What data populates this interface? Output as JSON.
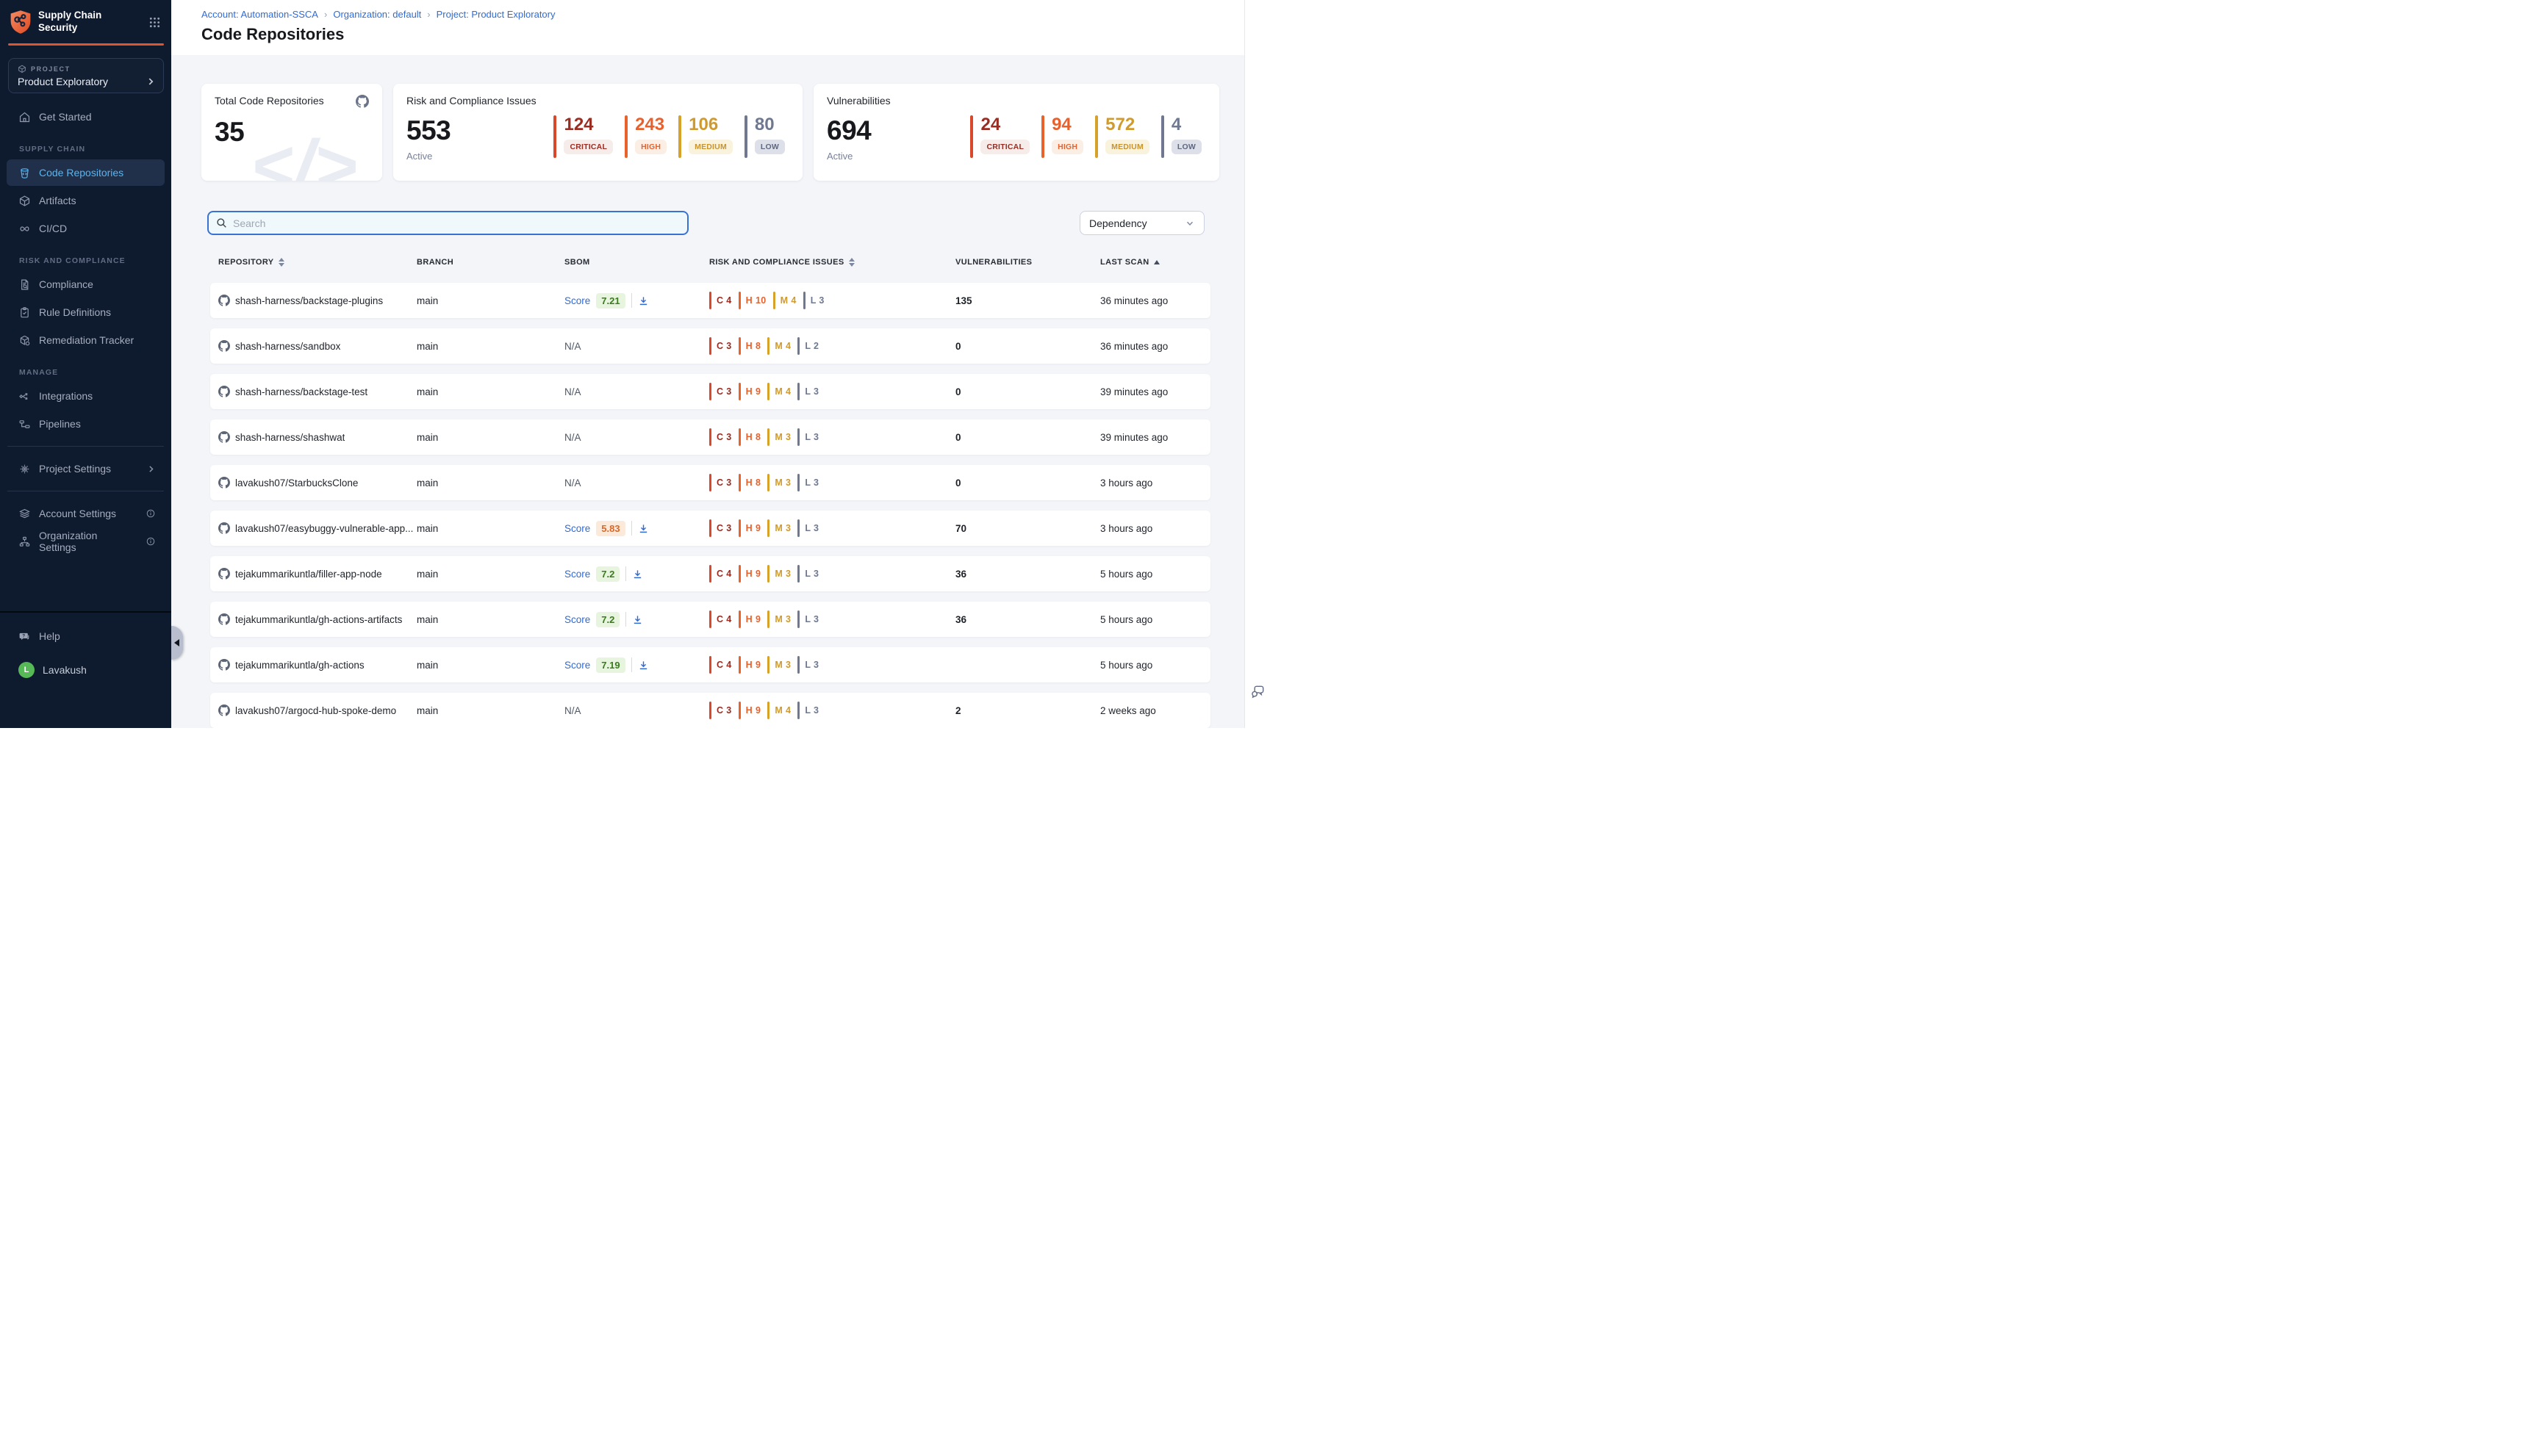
{
  "brand": {
    "name_line1": "Supply Chain",
    "name_line2": "Security",
    "accent_color": "#DE5530"
  },
  "breadcrumb": {
    "items": [
      "Account: Automation-SSCA",
      "Organization: default",
      "Project: Product Exploratory"
    ],
    "separator": "›"
  },
  "page": {
    "title": "Code Repositories"
  },
  "project_selector": {
    "label": "PROJECT",
    "name": "Product Exploratory"
  },
  "sidebar": {
    "get_started": "Get Started",
    "sections": [
      {
        "label": "SUPPLY CHAIN",
        "items": [
          {
            "label": "Code Repositories",
            "active": true
          },
          {
            "label": "Artifacts"
          },
          {
            "label": "CI/CD"
          }
        ]
      },
      {
        "label": "RISK AND COMPLIANCE",
        "items": [
          {
            "label": "Compliance"
          },
          {
            "label": "Rule Definitions"
          },
          {
            "label": "Remediation Tracker"
          }
        ]
      },
      {
        "label": "MANAGE",
        "items": [
          {
            "label": "Integrations"
          },
          {
            "label": "Pipelines"
          }
        ]
      }
    ],
    "project_settings": "Project Settings",
    "account_settings": "Account Settings",
    "organization_settings": "Organization Settings",
    "help": "Help",
    "user": {
      "initial": "L",
      "name": "Lavakush",
      "avatar_color": "#57B857"
    }
  },
  "cards": {
    "repos": {
      "title": "Total Code Repositories",
      "value": "35"
    },
    "risk": {
      "title": "Risk and Compliance Issues",
      "value": "553",
      "caption": "Active",
      "severities": [
        {
          "key": "critical",
          "label": "CRITICAL",
          "value": "124"
        },
        {
          "key": "high",
          "label": "HIGH",
          "value": "243"
        },
        {
          "key": "medium",
          "label": "MEDIUM",
          "value": "106"
        },
        {
          "key": "low",
          "label": "LOW",
          "value": "80"
        }
      ]
    },
    "vulns": {
      "title": "Vulnerabilities",
      "value": "694",
      "caption": "Active",
      "severities": [
        {
          "key": "critical",
          "label": "CRITICAL",
          "value": "24"
        },
        {
          "key": "high",
          "label": "HIGH",
          "value": "94"
        },
        {
          "key": "medium",
          "label": "MEDIUM",
          "value": "572"
        },
        {
          "key": "low",
          "label": "LOW",
          "value": "4"
        }
      ]
    }
  },
  "filters": {
    "search_placeholder": "Search",
    "dependency_label": "Dependency"
  },
  "theme": {
    "critical_text": "#9B2C21",
    "critical_bar": "#D9482B",
    "high_text": "#E8612D",
    "high_bar": "#E8632B",
    "medium_text": "#CF9A2F",
    "medium_bar": "#D7A22A",
    "low_text": "#6E7890",
    "low_bar": "#6F7890",
    "score_good_text": "#3B7A1E",
    "score_good_bg": "#E7F4DE",
    "score_warn_text": "#D9682A",
    "score_warn_bg": "#FBEADA",
    "link_blue": "#2F6BD8",
    "nav_bg": "#0E1A2E",
    "nav_active_text": "#57B6F0"
  },
  "table": {
    "columns": [
      {
        "label": "REPOSITORY",
        "sort": "both"
      },
      {
        "label": "BRANCH",
        "sort": "none"
      },
      {
        "label": "SBOM",
        "sort": "none"
      },
      {
        "label": "RISK AND COMPLIANCE ISSUES",
        "sort": "both"
      },
      {
        "label": "VULNERABILITIES",
        "sort": "none"
      },
      {
        "label": "LAST SCAN",
        "sort": "asc"
      }
    ],
    "severity_letters": {
      "critical": "C",
      "high": "H",
      "medium": "M",
      "low": "L"
    },
    "rows": [
      {
        "repo": "shash-harness/backstage-plugins",
        "branch": "main",
        "sbom": {
          "type": "score",
          "label": "Score",
          "value": "7.21",
          "tone": "good"
        },
        "risk": {
          "critical": 4,
          "high": 10,
          "medium": 4,
          "low": 3
        },
        "vulnerabilities": "135",
        "last_scan": "36 minutes ago"
      },
      {
        "repo": "shash-harness/sandbox",
        "branch": "main",
        "sbom": {
          "type": "na",
          "value": "N/A"
        },
        "risk": {
          "critical": 3,
          "high": 8,
          "medium": 4,
          "low": 2
        },
        "vulnerabilities": "0",
        "last_scan": "36 minutes ago"
      },
      {
        "repo": "shash-harness/backstage-test",
        "branch": "main",
        "sbom": {
          "type": "na",
          "value": "N/A"
        },
        "risk": {
          "critical": 3,
          "high": 9,
          "medium": 4,
          "low": 3
        },
        "vulnerabilities": "0",
        "last_scan": "39 minutes ago"
      },
      {
        "repo": "shash-harness/shashwat",
        "branch": "main",
        "sbom": {
          "type": "na",
          "value": "N/A"
        },
        "risk": {
          "critical": 3,
          "high": 8,
          "medium": 3,
          "low": 3
        },
        "vulnerabilities": "0",
        "last_scan": "39 minutes ago"
      },
      {
        "repo": "lavakush07/StarbucksClone",
        "branch": "main",
        "sbom": {
          "type": "na",
          "value": "N/A"
        },
        "risk": {
          "critical": 3,
          "high": 8,
          "medium": 3,
          "low": 3
        },
        "vulnerabilities": "0",
        "last_scan": "3 hours ago"
      },
      {
        "repo": "lavakush07/easybuggy-vulnerable-app...",
        "branch": "main",
        "sbom": {
          "type": "score",
          "label": "Score",
          "value": "5.83",
          "tone": "warn"
        },
        "risk": {
          "critical": 3,
          "high": 9,
          "medium": 3,
          "low": 3
        },
        "vulnerabilities": "70",
        "last_scan": "3 hours ago"
      },
      {
        "repo": "tejakummarikuntla/filler-app-node",
        "branch": "main",
        "sbom": {
          "type": "score",
          "label": "Score",
          "value": "7.2",
          "tone": "good"
        },
        "risk": {
          "critical": 4,
          "high": 9,
          "medium": 3,
          "low": 3
        },
        "vulnerabilities": "36",
        "last_scan": "5 hours ago"
      },
      {
        "repo": "tejakummarikuntla/gh-actions-artifacts",
        "branch": "main",
        "sbom": {
          "type": "score",
          "label": "Score",
          "value": "7.2",
          "tone": "good"
        },
        "risk": {
          "critical": 4,
          "high": 9,
          "medium": 3,
          "low": 3
        },
        "vulnerabilities": "36",
        "last_scan": "5 hours ago"
      },
      {
        "repo": "tejakummarikuntla/gh-actions",
        "branch": "main",
        "sbom": {
          "type": "score",
          "label": "Score",
          "value": "7.19",
          "tone": "good"
        },
        "risk": {
          "critical": 4,
          "high": 9,
          "medium": 3,
          "low": 3
        },
        "vulnerabilities": "",
        "last_scan": "5 hours ago"
      },
      {
        "repo": "lavakush07/argocd-hub-spoke-demo",
        "branch": "main",
        "sbom": {
          "type": "na",
          "value": "N/A"
        },
        "risk": {
          "critical": 3,
          "high": 9,
          "medium": 4,
          "low": 3
        },
        "vulnerabilities": "2",
        "last_scan": "2 weeks ago"
      }
    ]
  }
}
